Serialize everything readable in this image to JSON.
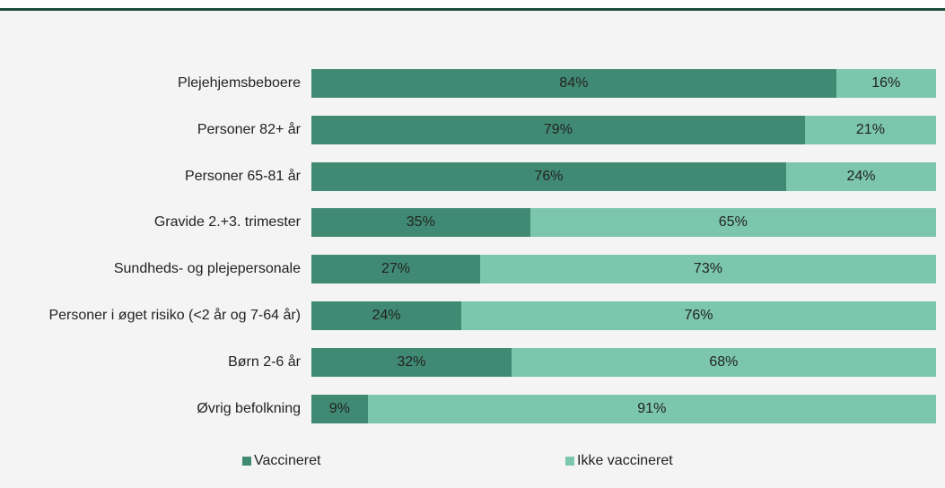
{
  "chart_data": {
    "type": "stacked-bar-horizontal",
    "categories": [
      "Plejehjemsbeboere",
      "Personer 82+ år",
      "Personer 65-81 år",
      "Gravide 2.+3. trimester",
      "Sundheds- og plejepersonale",
      "Personer i øget risiko (<2 år og 7-64 år)",
      "Børn 2-6 år",
      "Øvrig befolkning"
    ],
    "series": [
      {
        "name": "Vaccineret",
        "color": "#408a73",
        "values": [
          84,
          79,
          76,
          35,
          27,
          24,
          32,
          9
        ],
        "value_labels": [
          "84%",
          "79%",
          "76%",
          "35%",
          "27%",
          "24%",
          "32%",
          "9%"
        ]
      },
      {
        "name": "Ikke vaccineret",
        "color": "#7bc6ad",
        "values": [
          16,
          21,
          24,
          65,
          73,
          76,
          68,
          91
        ],
        "value_labels": [
          "16%",
          "21%",
          "24%",
          "65%",
          "73%",
          "76%",
          "68%",
          "91%"
        ]
      }
    ],
    "xlim": [
      0,
      100
    ],
    "legend": "bottom"
  }
}
